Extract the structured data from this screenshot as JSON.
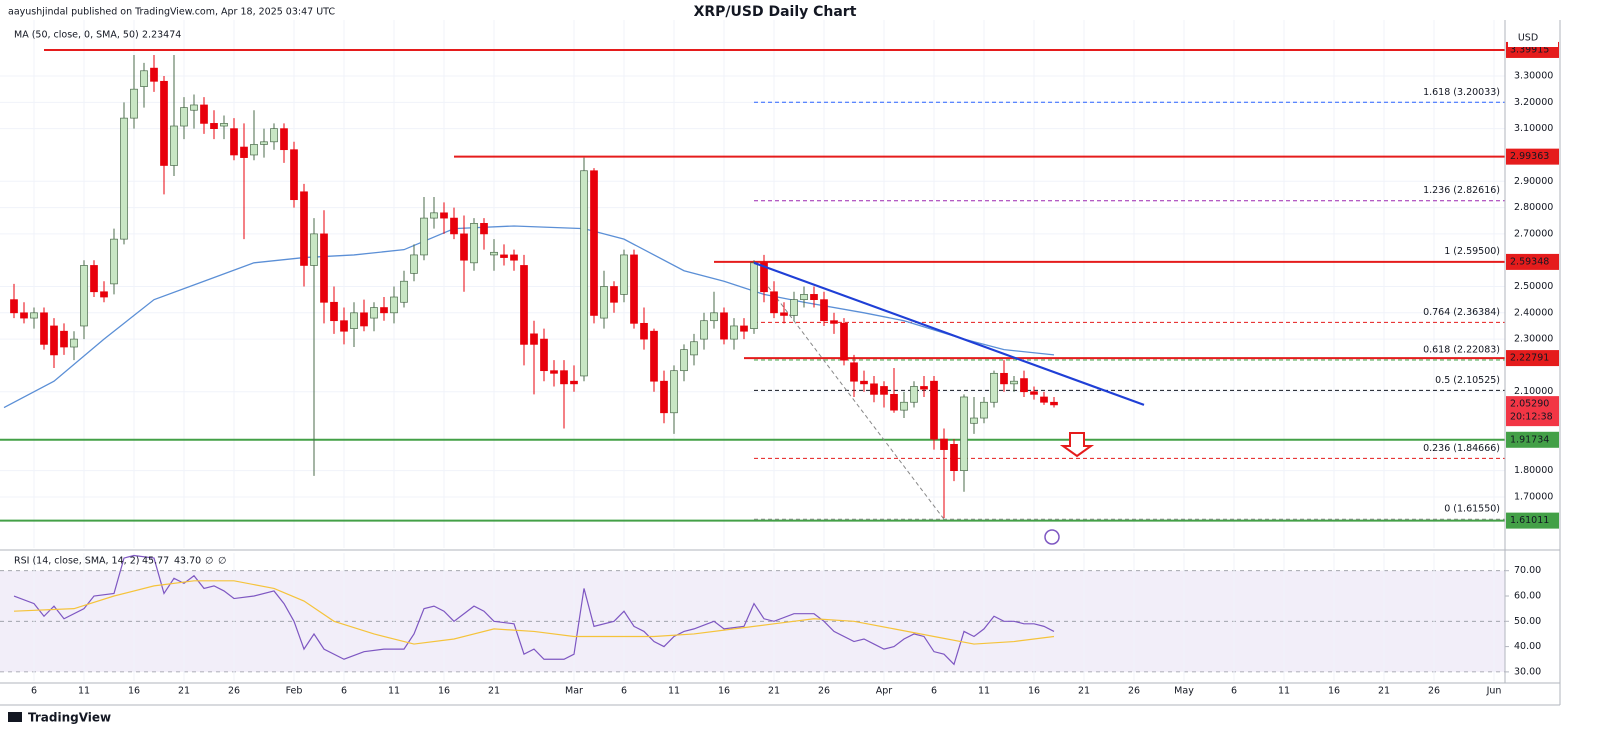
{
  "header": {
    "published": "aayushjindal published on TradingView.com, Apr 18, 2025 03:47 UTC",
    "brand": "TradingView"
  },
  "chart_data": [
    {
      "type": "candlestick",
      "title": "XRP/USD Daily Chart",
      "currency": "USD",
      "x": [
        4,
        5,
        6,
        7,
        8,
        9,
        10,
        11,
        12,
        13,
        14,
        15,
        16,
        17,
        18,
        19,
        20,
        21,
        22,
        23,
        24,
        25,
        26,
        27,
        28,
        29,
        30,
        31,
        32,
        33,
        34,
        35,
        36,
        37,
        38,
        39,
        40,
        41,
        42,
        43,
        44,
        45,
        46,
        47,
        48,
        49,
        50,
        51,
        52,
        53,
        54,
        55,
        56,
        57,
        58,
        59,
        60,
        61,
        62,
        63,
        64,
        65,
        66,
        67,
        68,
        69,
        70,
        71,
        72,
        73,
        74,
        75,
        76,
        77,
        78,
        79,
        80,
        81,
        82,
        83,
        84,
        85,
        86,
        87,
        88,
        89,
        90,
        91,
        92,
        93,
        94,
        95,
        96,
        97,
        98,
        99,
        100,
        101,
        102,
        103,
        104,
        105,
        106,
        107,
        108
      ],
      "open": [
        2.45,
        2.4,
        2.38,
        2.4,
        2.35,
        2.33,
        2.27,
        2.35,
        2.58,
        2.48,
        2.51,
        2.68,
        3.14,
        3.26,
        3.33,
        3.28,
        2.96,
        3.11,
        3.17,
        3.19,
        3.12,
        3.11,
        3.1,
        3.03,
        3.0,
        3.04,
        3.05,
        3.1,
        3.02,
        2.86,
        2.58,
        2.7,
        2.44,
        2.37,
        2.34,
        2.4,
        2.38,
        2.42,
        2.4,
        2.44,
        2.55,
        2.62,
        2.76,
        2.78,
        2.76,
        2.7,
        2.59,
        2.74,
        2.62,
        2.62,
        2.62,
        2.58,
        2.32,
        2.3,
        2.18,
        2.18,
        2.14,
        2.16,
        2.94,
        2.38,
        2.5,
        2.47,
        2.62,
        2.36,
        2.33,
        2.14,
        2.02,
        2.18,
        2.24,
        2.3,
        2.37,
        2.4,
        2.3,
        2.35,
        2.34,
        2.59,
        2.48,
        2.4,
        2.39,
        2.45,
        2.47,
        2.45,
        2.37,
        2.36,
        2.21,
        2.14,
        2.13,
        2.12,
        2.09,
        2.03,
        2.06,
        2.12,
        2.14,
        1.92,
        1.9,
        1.8,
        1.98,
        2.0,
        2.06,
        2.17,
        2.13,
        2.15,
        2.1,
        2.08,
        2.06
      ],
      "high": [
        2.51,
        2.44,
        2.42,
        2.42,
        2.38,
        2.36,
        2.33,
        2.6,
        2.6,
        2.52,
        2.72,
        3.2,
        3.38,
        3.35,
        3.38,
        3.3,
        3.38,
        3.22,
        3.23,
        3.22,
        3.17,
        3.15,
        3.14,
        3.12,
        3.17,
        3.1,
        3.12,
        3.12,
        3.05,
        2.89,
        2.76,
        2.79,
        2.5,
        2.42,
        2.44,
        2.45,
        2.44,
        2.46,
        2.5,
        2.56,
        2.66,
        2.84,
        2.84,
        2.82,
        2.8,
        2.77,
        2.76,
        2.76,
        2.68,
        2.66,
        2.64,
        2.62,
        2.37,
        2.34,
        2.22,
        2.22,
        2.2,
        2.99,
        2.95,
        2.56,
        2.52,
        2.64,
        2.64,
        2.42,
        2.34,
        2.18,
        2.2,
        2.28,
        2.32,
        2.4,
        2.48,
        2.42,
        2.38,
        2.38,
        2.6,
        2.62,
        2.52,
        2.44,
        2.48,
        2.5,
        2.5,
        2.48,
        2.4,
        2.38,
        2.24,
        2.18,
        2.16,
        2.14,
        2.19,
        2.1,
        2.14,
        2.16,
        2.16,
        1.96,
        1.92,
        2.09,
        2.08,
        2.08,
        2.18,
        2.22,
        2.16,
        2.18,
        2.12,
        2.1,
        2.08
      ],
      "low": [
        2.38,
        2.36,
        2.34,
        2.26,
        2.19,
        2.24,
        2.22,
        2.3,
        2.46,
        2.44,
        2.47,
        2.66,
        3.1,
        3.18,
        3.24,
        2.85,
        2.92,
        3.06,
        3.1,
        3.08,
        3.06,
        3.06,
        2.98,
        2.68,
        2.98,
        2.99,
        3.02,
        2.97,
        2.8,
        2.5,
        1.78,
        2.36,
        2.32,
        2.28,
        2.27,
        2.33,
        2.33,
        2.37,
        2.36,
        2.42,
        2.52,
        2.6,
        2.72,
        2.7,
        2.68,
        2.48,
        2.56,
        2.64,
        2.56,
        2.58,
        2.56,
        2.2,
        2.09,
        2.14,
        2.12,
        1.96,
        2.1,
        2.14,
        2.36,
        2.34,
        2.4,
        2.44,
        2.34,
        2.26,
        2.1,
        1.98,
        1.94,
        2.14,
        2.2,
        2.26,
        2.34,
        2.28,
        2.26,
        2.3,
        2.32,
        2.44,
        2.38,
        2.36,
        2.37,
        2.42,
        2.42,
        2.35,
        2.32,
        2.2,
        2.08,
        2.1,
        2.06,
        2.04,
        2.02,
        2.0,
        2.04,
        2.08,
        1.88,
        1.62,
        1.76,
        1.72,
        1.94,
        1.98,
        2.04,
        2.1,
        2.1,
        2.08,
        2.07,
        2.05,
        2.04
      ],
      "close": [
        2.4,
        2.38,
        2.4,
        2.28,
        2.24,
        2.27,
        2.3,
        2.58,
        2.48,
        2.46,
        2.68,
        3.14,
        3.25,
        3.32,
        3.28,
        2.96,
        3.11,
        3.18,
        3.19,
        3.12,
        3.1,
        3.12,
        3.0,
        2.99,
        3.04,
        3.05,
        3.1,
        3.02,
        2.83,
        2.58,
        2.7,
        2.44,
        2.37,
        2.33,
        2.4,
        2.35,
        2.42,
        2.4,
        2.46,
        2.52,
        2.62,
        2.76,
        2.78,
        2.76,
        2.7,
        2.6,
        2.74,
        2.7,
        2.63,
        2.61,
        2.6,
        2.28,
        2.28,
        2.18,
        2.17,
        2.13,
        2.13,
        2.94,
        2.39,
        2.5,
        2.44,
        2.62,
        2.36,
        2.3,
        2.14,
        2.02,
        2.18,
        2.26,
        2.29,
        2.37,
        2.4,
        2.3,
        2.35,
        2.33,
        2.59,
        2.48,
        2.4,
        2.39,
        2.45,
        2.47,
        2.45,
        2.37,
        2.36,
        2.22,
        2.14,
        2.13,
        2.09,
        2.09,
        2.03,
        2.06,
        2.12,
        2.11,
        1.92,
        1.88,
        1.8,
        2.08,
        2.0,
        2.06,
        2.17,
        2.13,
        2.14,
        2.1,
        2.09,
        2.06,
        2.05
      ],
      "up_color": "#c8e6c4",
      "up_edge": "#4b6b4b",
      "down_color": "#e8000b",
      "indicator": {
        "label": "MA (50, close, 0, SMA, 50)",
        "legend_value": "2.23474",
        "color": "#5b8fd6",
        "x": [
          3,
          8,
          13,
          18,
          23,
          28,
          33,
          38,
          43,
          48,
          54,
          61,
          65,
          71,
          75,
          79,
          83,
          89,
          93,
          99,
          103,
          108
        ],
        "values": [
          2.04,
          2.14,
          2.3,
          2.45,
          2.52,
          2.59,
          2.61,
          2.62,
          2.64,
          2.72,
          2.73,
          2.72,
          2.68,
          2.56,
          2.52,
          2.47,
          2.44,
          2.4,
          2.37,
          2.3,
          2.26,
          2.24
        ]
      },
      "levels": [
        {
          "value": 3.39915,
          "label": "3.39915",
          "x": 7,
          "color": "#e51c1c"
        },
        {
          "value": 2.99363,
          "label": "2.99363",
          "x": 48,
          "color": "#e51c1c"
        },
        {
          "value": 2.59348,
          "label": "2.59348",
          "x": 74,
          "color": "#e51c1c"
        },
        {
          "value": 2.22791,
          "label": "2.22791",
          "x": 77,
          "color": "#e51c1c"
        },
        {
          "value": 1.91734,
          "label": "1.91734",
          "color": "#43a047"
        },
        {
          "value": 1.61011,
          "label": "1.61011",
          "color": "#43a047"
        }
      ],
      "fib": {
        "x": 78,
        "levels": [
          {
            "value": 3.20033,
            "label": "1.618 (3.20033)",
            "color": "#2962ff"
          },
          {
            "value": 2.82616,
            "label": "1.236 (2.82616)",
            "color": "#9c27b0"
          },
          {
            "value": 2.595,
            "label": "1 (2.59500)",
            "color": "#2962ff"
          },
          {
            "value": 2.36384,
            "label": "0.764 (2.36384)",
            "color": "#e51c1c"
          },
          {
            "value": 2.22083,
            "label": "0.618 (2.22083)",
            "color": "#43a047"
          },
          {
            "value": 2.10525,
            "label": "0.5 (2.10525)",
            "color": "#131722"
          },
          {
            "value": 1.84666,
            "label": "0.236 (1.84666)",
            "color": "#e51c1c"
          },
          {
            "value": 1.6155,
            "label": "0 (1.61550)",
            "color": "#888888"
          }
        ]
      },
      "fib_diagonal": {
        "x": [
          79,
          97
        ],
        "y": [
          2.52,
          1.6155
        ]
      },
      "trendline": {
        "x": [
          78,
          117
        ],
        "y": [
          2.59,
          2.05
        ],
        "color": "#1f3fd6"
      },
      "price": {
        "value": 2.0529,
        "label": "2.05290",
        "countdown": "20:12:38",
        "color": "#f23645"
      },
      "xlim": [
        2.6,
        153.1
      ],
      "ylim": [
        1.506,
        3.513
      ],
      "yticks": [
        {
          "value": 3.3,
          "label": "3.30000"
        },
        {
          "value": 3.2,
          "label": "3.20000"
        },
        {
          "value": 3.1,
          "label": "3.10000"
        },
        {
          "value": 2.9,
          "label": "2.90000"
        },
        {
          "value": 2.8,
          "label": "2.80000"
        },
        {
          "value": 2.7,
          "label": "2.70000"
        },
        {
          "value": 2.5,
          "label": "2.50000"
        },
        {
          "value": 2.4,
          "label": "2.40000"
        },
        {
          "value": 2.3,
          "label": "2.30000"
        },
        {
          "value": 2.1,
          "label": "2.10000"
        },
        {
          "value": 1.8,
          "label": "1.80000"
        },
        {
          "value": 1.7,
          "label": "1.70000"
        }
      ]
    },
    {
      "type": "line",
      "title": "RSI (14, close, SMA, 14, 2)",
      "legend_extra": [
        "∅",
        "∅"
      ],
      "series": [
        {
          "color": "#7e57c2",
          "legend_value": "45.77",
          "x": [
            4,
            6,
            7,
            8,
            9,
            11,
            12,
            14,
            15,
            16,
            18,
            19,
            20,
            21,
            22,
            23,
            24,
            25,
            26,
            28,
            30,
            31,
            32,
            33,
            34,
            35,
            37,
            39,
            41,
            43,
            44,
            45,
            46,
            47,
            48,
            49,
            50,
            51,
            52,
            54,
            55,
            56,
            57,
            59,
            60,
            61,
            62,
            64,
            65,
            66,
            67,
            68,
            69,
            70,
            71,
            72,
            74,
            75,
            77,
            78,
            79,
            80,
            82,
            84,
            85,
            86,
            88,
            89,
            90,
            91,
            92,
            93,
            94,
            95,
            96,
            97,
            98,
            99,
            100,
            101,
            102,
            103,
            104,
            105,
            106,
            107,
            108
          ],
          "values": [
            60,
            57,
            52,
            56,
            51,
            55,
            60,
            61,
            75,
            76,
            75,
            61,
            67,
            65,
            68,
            63,
            64,
            62,
            59,
            60,
            62,
            57,
            50,
            39,
            45,
            39,
            35,
            38,
            39,
            39,
            45,
            55,
            56,
            54,
            50,
            53,
            56,
            54,
            50,
            49,
            37,
            39,
            35,
            35,
            37,
            63,
            48,
            50,
            54,
            48,
            46,
            42,
            40,
            44,
            46,
            47,
            50,
            47,
            48,
            57,
            51,
            50,
            53,
            53,
            50,
            46,
            42,
            43,
            41,
            39,
            40,
            43,
            45,
            44,
            38,
            37,
            33,
            46,
            44,
            47,
            52,
            50,
            50,
            49,
            49,
            48,
            46
          ]
        },
        {
          "color": "#f5c33b",
          "legend_value": "43.70",
          "x": [
            4,
            10,
            14,
            18,
            22,
            26,
            30,
            33,
            36,
            40,
            44,
            48,
            52,
            56,
            60,
            64,
            68,
            72,
            76,
            80,
            84,
            88,
            92,
            96,
            100,
            104,
            108
          ],
          "values": [
            54,
            55,
            60,
            64,
            66,
            66,
            63,
            58,
            50,
            45,
            41,
            43,
            47,
            46,
            44,
            44,
            44,
            45,
            47,
            49,
            51,
            50,
            47,
            44,
            41,
            42,
            44
          ]
        }
      ],
      "band": [
        30,
        70
      ],
      "midline": 50,
      "xlim": [
        2.6,
        153.1
      ],
      "ylim": [
        26.4,
        77.0
      ],
      "yticks": [
        {
          "value": 70,
          "label": "70.00"
        },
        {
          "value": 60,
          "label": "60.00"
        },
        {
          "value": 50,
          "label": "50.00"
        },
        {
          "value": 40,
          "label": "40.00"
        },
        {
          "value": 30,
          "label": "30.00"
        }
      ],
      "xticks": [
        {
          "value": 6,
          "label": "6"
        },
        {
          "value": 11,
          "label": "11"
        },
        {
          "value": 16,
          "label": "16"
        },
        {
          "value": 21,
          "label": "21"
        },
        {
          "value": 26,
          "label": "26"
        },
        {
          "value": 32,
          "label": "Feb"
        },
        {
          "value": 37,
          "label": "6"
        },
        {
          "value": 42,
          "label": "11"
        },
        {
          "value": 47,
          "label": "16"
        },
        {
          "value": 52,
          "label": "21"
        },
        {
          "value": 60,
          "label": "Mar"
        },
        {
          "value": 65,
          "label": "6"
        },
        {
          "value": 70,
          "label": "11"
        },
        {
          "value": 75,
          "label": "16"
        },
        {
          "value": 80,
          "label": "21"
        },
        {
          "value": 85,
          "label": "26"
        },
        {
          "value": 91,
          "label": "Apr"
        },
        {
          "value": 96,
          "label": "6"
        },
        {
          "value": 101,
          "label": "11"
        },
        {
          "value": 106,
          "label": "16"
        },
        {
          "value": 111,
          "label": "21"
        },
        {
          "value": 116,
          "label": "26"
        },
        {
          "value": 121,
          "label": "May"
        },
        {
          "value": 126,
          "label": "6"
        },
        {
          "value": 131,
          "label": "11"
        },
        {
          "value": 136,
          "label": "16"
        },
        {
          "value": 141,
          "label": "21"
        },
        {
          "value": 146,
          "label": "26"
        },
        {
          "value": 152,
          "label": "Jun"
        }
      ]
    }
  ]
}
